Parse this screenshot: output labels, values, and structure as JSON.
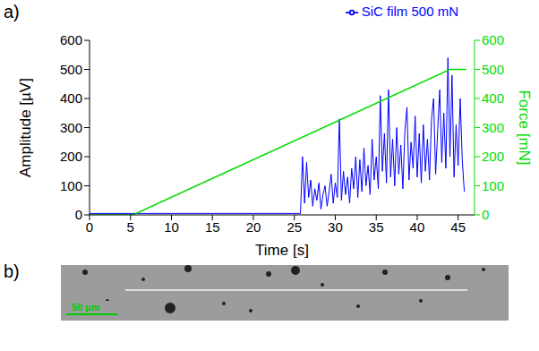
{
  "panel_labels": [
    "a)",
    "b)"
  ],
  "image": {
    "scale_bar": "50 µm"
  },
  "chart_data": {
    "type": "line",
    "x_label": "Time [s]",
    "y_label": "Amplitude [µV]",
    "y2_label": "Force [mN]",
    "xlim": [
      0,
      47
    ],
    "xticks": [
      0,
      5,
      10,
      15,
      20,
      25,
      30,
      35,
      40,
      45
    ],
    "ylim": [
      0,
      600
    ],
    "yticks": [
      0,
      100,
      200,
      300,
      400,
      500,
      600
    ],
    "y2lim": [
      0,
      600
    ],
    "y2ticks": [
      0,
      100,
      200,
      300,
      400,
      500,
      600
    ],
    "legend": "top right",
    "series": [
      {
        "name": "SiC film 500 mN",
        "color": "#0000ff",
        "x": [
          0,
          25.75,
          26.0,
          26.25,
          26.5,
          26.75,
          27.0,
          27.25,
          27.5,
          27.75,
          28.0,
          28.25,
          28.5,
          28.75,
          29.0,
          29.25,
          29.5,
          29.75,
          30.0,
          30.25,
          30.5,
          30.75,
          31.0,
          31.25,
          31.5,
          31.75,
          32.0,
          32.25,
          32.5,
          32.75,
          33.0,
          33.25,
          33.5,
          33.75,
          34.0,
          34.25,
          34.5,
          34.75,
          35.0,
          35.25,
          35.5,
          35.75,
          36.0,
          36.25,
          36.5,
          36.75,
          37.0,
          37.25,
          37.5,
          37.75,
          38.0,
          38.25,
          38.5,
          38.75,
          39.0,
          39.25,
          39.5,
          39.75,
          40.0,
          40.25,
          40.5,
          40.75,
          41.0,
          41.25,
          41.5,
          41.75,
          42.0,
          42.25,
          42.5,
          42.75,
          43.0,
          43.25,
          43.5,
          43.75,
          44.0,
          44.25,
          44.5,
          44.75,
          45.0,
          45.25,
          45.5,
          45.75
        ],
        "values": [
          5,
          5,
          200,
          40,
          180,
          60,
          120,
          30,
          90,
          50,
          110,
          20,
          70,
          100,
          30,
          80,
          140,
          40,
          110,
          60,
          330,
          50,
          150,
          70,
          130,
          40,
          160,
          90,
          200,
          60,
          190,
          80,
          230,
          100,
          170,
          70,
          260,
          120,
          200,
          90,
          410,
          150,
          280,
          110,
          430,
          130,
          260,
          100,
          300,
          140,
          240,
          90,
          290,
          370,
          120,
          250,
          160,
          340,
          130,
          280,
          110,
          310,
          150,
          260,
          120,
          330,
          400,
          140,
          290,
          430,
          180,
          350,
          160,
          540,
          200,
          480,
          130,
          310,
          170,
          400,
          190,
          80
        ]
      },
      {
        "color": "#00dd00",
        "axis": "y2",
        "x": [
          0,
          5.3,
          44,
          46
        ],
        "values": [
          0,
          0,
          500,
          500
        ]
      }
    ]
  }
}
